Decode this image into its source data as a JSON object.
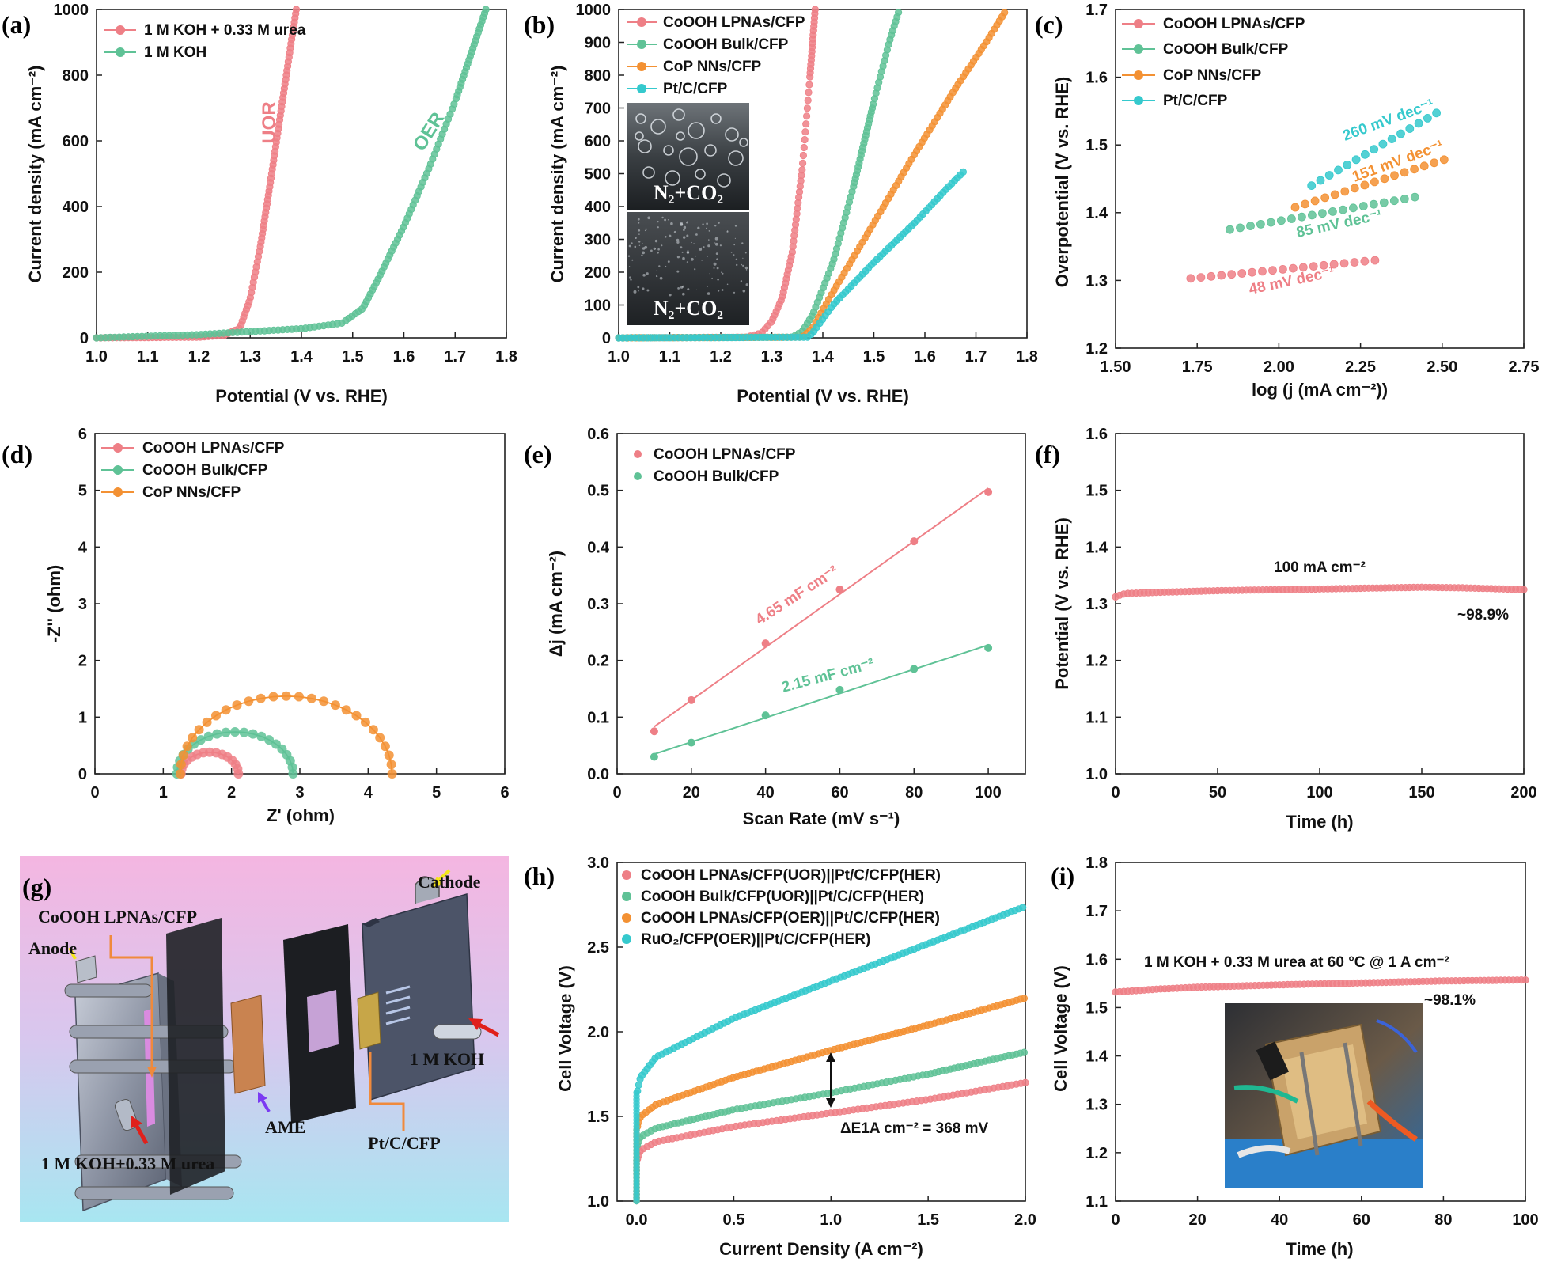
{
  "colors": {
    "pink": "#ee7f86",
    "green": "#5fc296",
    "orange": "#f39133",
    "cyan": "#35c9cd",
    "red_arrow": "#e0201b",
    "yellow_arrow": "#f4e61c",
    "purple_arrow": "#7b3af2",
    "orange_line": "#f08a3c"
  },
  "panels": {
    "a": {
      "label": "(a)",
      "xlabel": "Potential (V vs. RHE)",
      "ylabel": "Current density (mA cm⁻²)",
      "xlim": [
        1.0,
        1.8
      ],
      "ylim": [
        0,
        1000
      ],
      "xticks": [
        "1.0",
        "1.1",
        "1.2",
        "1.3",
        "1.4",
        "1.5",
        "1.6",
        "1.7",
        "1.8"
      ],
      "yticks": [
        "0",
        "200",
        "400",
        "600",
        "800",
        "1000"
      ],
      "legend": [
        "1 M KOH + 0.33 M urea",
        "1 M KOH"
      ],
      "annotations": [
        "UOR",
        "OER"
      ]
    },
    "b": {
      "label": "(b)",
      "xlabel": "Potential (V vs. RHE)",
      "ylabel": "Current density (mA cm⁻²)",
      "xlim": [
        1.0,
        1.8
      ],
      "ylim": [
        0,
        1000
      ],
      "xticks": [
        "1.0",
        "1.1",
        "1.2",
        "1.3",
        "1.4",
        "1.5",
        "1.6",
        "1.7",
        "1.8"
      ],
      "yticks": [
        "0",
        "100",
        "200",
        "300",
        "400",
        "500",
        "600",
        "700",
        "800",
        "900",
        "1000"
      ],
      "legend": [
        "CoOOH LPNAs/CFP",
        "CoOOH Bulk/CFP",
        "CoP NNs/CFP",
        "Pt/C/CFP"
      ],
      "photo_top": "N₂+CO₂",
      "photo_bottom": "N₂+CO₂"
    },
    "c": {
      "label": "(c)",
      "xlabel": "log (j (mA cm⁻²))",
      "ylabel": "Overpotential (V vs. RHE)",
      "xlim": [
        1.5,
        2.75
      ],
      "ylim": [
        1.2,
        1.7
      ],
      "xticks": [
        "1.50",
        "1.75",
        "2.00",
        "2.25",
        "2.50",
        "2.75"
      ],
      "yticks": [
        "1.2",
        "1.3",
        "1.4",
        "1.5",
        "1.6",
        "1.7"
      ],
      "legend": [
        "CoOOH LPNAs/CFP",
        "CoOOH Bulk/CFP",
        "CoP NNs/CFP",
        "Pt/C/CFP"
      ],
      "annotations": [
        "260 mV dec⁻¹",
        "151 mV dec⁻¹",
        "85 mV dec⁻¹",
        "48 mV dec⁻¹"
      ]
    },
    "d": {
      "label": "(d)",
      "xlabel": "Z' (ohm)",
      "ylabel": "-Z'' (ohm)",
      "xlim": [
        0,
        6
      ],
      "ylim": [
        0,
        6
      ],
      "xticks": [
        "0",
        "1",
        "2",
        "3",
        "4",
        "5",
        "6"
      ],
      "yticks": [
        "0",
        "1",
        "2",
        "3",
        "4",
        "5",
        "6"
      ],
      "legend": [
        "CoOOH LPNAs/CFP",
        "CoOOH Bulk/CFP",
        "CoP NNs/CFP"
      ]
    },
    "e": {
      "label": "(e)",
      "xlabel": "Scan Rate (mV s⁻¹)",
      "ylabel": "Δj (mA cm⁻²)",
      "xlim": [
        0,
        110
      ],
      "ylim": [
        0,
        0.6
      ],
      "xticks": [
        "0",
        "20",
        "40",
        "60",
        "80",
        "100"
      ],
      "yticks": [
        "0.0",
        "0.1",
        "0.2",
        "0.3",
        "0.4",
        "0.5",
        "0.6"
      ],
      "legend": [
        "CoOOH LPNAs/CFP",
        "CoOOH Bulk/CFP"
      ],
      "annotations": [
        "4.65 mF cm⁻²",
        "2.15 mF cm⁻²"
      ]
    },
    "f": {
      "label": "(f)",
      "xlabel": "Time (h)",
      "ylabel": "Potential (V vs. RHE)",
      "xlim": [
        0,
        200
      ],
      "ylim": [
        1.0,
        1.6
      ],
      "xticks": [
        "0",
        "50",
        "100",
        "150",
        "200"
      ],
      "yticks": [
        "1.0",
        "1.1",
        "1.2",
        "1.3",
        "1.4",
        "1.5",
        "1.6"
      ],
      "annotations": [
        "100 mA cm⁻²",
        "~98.9%"
      ]
    },
    "g": {
      "label": "(g)",
      "labels": [
        "Cathode",
        "CoOOH LPNAs/CFP",
        "Anode",
        "1 M KOH",
        "AME",
        "Pt/C/CFP",
        "1 M KOH+0.33 M urea"
      ]
    },
    "h": {
      "label": "(h)",
      "xlabel": "Current Density (A cm⁻²)",
      "ylabel": "Cell Voltage (V)",
      "xlim": [
        -0.1,
        2.0
      ],
      "ylim": [
        1.0,
        3.0
      ],
      "xticks": [
        "0.0",
        "0.5",
        "1.0",
        "1.5",
        "2.0"
      ],
      "yticks": [
        "1.0",
        "1.5",
        "2.0",
        "2.5",
        "3.0"
      ],
      "legend": [
        "CoOOH LPNAs/CFP(UOR)||Pt/C/CFP(HER)",
        "CoOOH Bulk/CFP(UOR)||Pt/C/CFP(HER)",
        "CoOOH LPNAs/CFP(OER)||Pt/C/CFP(HER)",
        "RuO₂/CFP(OER)||Pt/C/CFP(HER)"
      ],
      "annotations": [
        "ΔE1A cm⁻² = 368 mV"
      ]
    },
    "i": {
      "label": "(i)",
      "xlabel": "Time (h)",
      "ylabel": "Cell Voltage (V)",
      "xlim": [
        0,
        100
      ],
      "ylim": [
        1.1,
        1.8
      ],
      "xticks": [
        "0",
        "20",
        "40",
        "60",
        "80",
        "100"
      ],
      "yticks": [
        "1.1",
        "1.2",
        "1.3",
        "1.4",
        "1.5",
        "1.6",
        "1.7",
        "1.8"
      ],
      "annotations": [
        "1 M KOH + 0.33 M urea at 60 °C @ 1 A cm⁻²",
        "~98.1%"
      ]
    }
  },
  "chart_data": [
    {
      "panel": "a",
      "type": "line",
      "x_label": "Potential (V vs. RHE)",
      "y_label": "Current density (mA cm-2)",
      "series": [
        {
          "name": "1 M KOH + 0.33 M urea",
          "x": [
            1.0,
            1.2,
            1.25,
            1.28,
            1.3,
            1.32,
            1.34,
            1.36,
            1.38,
            1.39
          ],
          "y": [
            0,
            2,
            8,
            30,
            120,
            280,
            480,
            690,
            900,
            1000
          ]
        },
        {
          "name": "1 M KOH",
          "x": [
            1.0,
            1.2,
            1.4,
            1.48,
            1.52,
            1.55,
            1.6,
            1.65,
            1.7,
            1.73,
            1.76
          ],
          "y": [
            0,
            10,
            28,
            45,
            90,
            180,
            340,
            520,
            720,
            860,
            1000
          ]
        }
      ]
    },
    {
      "panel": "b",
      "type": "line",
      "x_label": "Potential (V vs. RHE)",
      "y_label": "Current density (mA cm-2)",
      "series": [
        {
          "name": "CoOOH LPNAs/CFP",
          "x": [
            1.0,
            1.25,
            1.28,
            1.3,
            1.32,
            1.34,
            1.36,
            1.375,
            1.385
          ],
          "y": [
            0,
            2,
            15,
            50,
            120,
            260,
            520,
            800,
            1000
          ]
        },
        {
          "name": "CoOOH Bulk/CFP",
          "x": [
            1.0,
            1.34,
            1.36,
            1.38,
            1.42,
            1.46,
            1.5,
            1.53,
            1.55
          ],
          "y": [
            0,
            2,
            20,
            70,
            230,
            460,
            720,
            900,
            1000
          ]
        },
        {
          "name": "CoP NNs/CFP",
          "x": [
            1.0,
            1.36,
            1.38,
            1.42,
            1.5,
            1.58,
            1.66,
            1.72,
            1.76
          ],
          "y": [
            0,
            2,
            30,
            140,
            350,
            560,
            760,
            900,
            1000
          ]
        },
        {
          "name": "Pt/C/CFP",
          "x": [
            1.0,
            1.37,
            1.38,
            1.42,
            1.5,
            1.58,
            1.64,
            1.675
          ],
          "y": [
            0,
            2,
            15,
            100,
            230,
            350,
            450,
            505
          ]
        }
      ]
    },
    {
      "panel": "c",
      "type": "scatter",
      "x_label": "log (j (mA cm-2))",
      "y_label": "Overpotential (V vs. RHE)",
      "series": [
        {
          "name": "CoOOH LPNAs/CFP",
          "x": [
            1.73,
            2.3
          ],
          "y": [
            1.303,
            1.33
          ]
        },
        {
          "name": "CoOOH Bulk/CFP",
          "x": [
            1.85,
            2.44
          ],
          "y": [
            1.375,
            1.425
          ]
        },
        {
          "name": "CoP NNs/CFP",
          "x": [
            2.05,
            2.53
          ],
          "y": [
            1.408,
            1.482
          ]
        },
        {
          "name": "Pt/C/CFP",
          "x": [
            2.1,
            2.5
          ],
          "y": [
            1.44,
            1.552
          ]
        }
      ]
    },
    {
      "panel": "d",
      "type": "scatter",
      "x_label": "Z' (ohm)",
      "y_label": "-Z'' (ohm)",
      "series": [
        {
          "name": "CoOOH LPNAs/CFP",
          "center": 1.68,
          "radius": 0.42,
          "height": 0.38
        },
        {
          "name": "CoOOH Bulk/CFP",
          "center": 2.05,
          "radius": 0.85,
          "height": 0.74
        },
        {
          "name": "CoP NNs/CFP",
          "center": 2.8,
          "radius": 1.55,
          "height": 1.37
        }
      ]
    },
    {
      "panel": "e",
      "type": "scatter",
      "x_label": "Scan Rate (mV s-1)",
      "y_label": "Δj (mA cm-2)",
      "series": [
        {
          "name": "CoOOH LPNAs/CFP",
          "x": [
            10,
            20,
            40,
            60,
            80,
            100
          ],
          "y": [
            0.075,
            0.13,
            0.23,
            0.325,
            0.41,
            0.497
          ]
        },
        {
          "name": "CoOOH Bulk/CFP",
          "x": [
            10,
            20,
            40,
            60,
            80,
            100
          ],
          "y": [
            0.03,
            0.055,
            0.103,
            0.148,
            0.185,
            0.222
          ]
        }
      ]
    },
    {
      "panel": "f",
      "type": "line",
      "x_label": "Time (h)",
      "y_label": "Potential (V vs. RHE)",
      "series": [
        {
          "name": "",
          "x": [
            0,
            2,
            5,
            20,
            50,
            100,
            150,
            170,
            200
          ],
          "y": [
            1.312,
            1.315,
            1.318,
            1.32,
            1.323,
            1.326,
            1.329,
            1.328,
            1.325
          ]
        }
      ]
    },
    {
      "panel": "h",
      "type": "line",
      "x_label": "Current Density (A cm-2)",
      "y_label": "Cell Voltage (V)",
      "series": [
        {
          "name": "CoOOH LPNAs/CFP(UOR)||Pt/C/CFP(HER)",
          "x": [
            0,
            0.005,
            0.02,
            0.1,
            0.5,
            1.0,
            1.5,
            2.0
          ],
          "y": [
            1.0,
            1.25,
            1.3,
            1.35,
            1.44,
            1.52,
            1.6,
            1.7
          ]
        },
        {
          "name": "CoOOH Bulk/CFP(UOR)||Pt/C/CFP(HER)",
          "x": [
            0,
            0.005,
            0.02,
            0.1,
            0.5,
            1.0,
            1.5,
            2.0
          ],
          "y": [
            1.0,
            1.33,
            1.38,
            1.43,
            1.54,
            1.64,
            1.75,
            1.88
          ]
        },
        {
          "name": "CoOOH LPNAs/CFP(OER)||Pt/C/CFP(HER)",
          "x": [
            0,
            0.005,
            0.02,
            0.1,
            0.5,
            1.0,
            1.5,
            2.0
          ],
          "y": [
            1.0,
            1.44,
            1.5,
            1.57,
            1.73,
            1.89,
            2.04,
            2.2
          ]
        },
        {
          "name": "RuO2/CFP(OER)||Pt/C/CFP(HER)",
          "x": [
            0,
            0.005,
            0.02,
            0.1,
            0.5,
            1.0,
            1.5,
            2.0
          ],
          "y": [
            1.0,
            1.65,
            1.73,
            1.85,
            2.08,
            2.3,
            2.52,
            2.74
          ]
        }
      ]
    },
    {
      "panel": "i",
      "type": "line",
      "x_label": "Time (h)",
      "y_label": "Cell Voltage (V)",
      "series": [
        {
          "name": "",
          "x": [
            0,
            10,
            20,
            40,
            60,
            80,
            100
          ],
          "y": [
            1.532,
            1.538,
            1.542,
            1.547,
            1.551,
            1.555,
            1.557
          ]
        }
      ]
    }
  ]
}
